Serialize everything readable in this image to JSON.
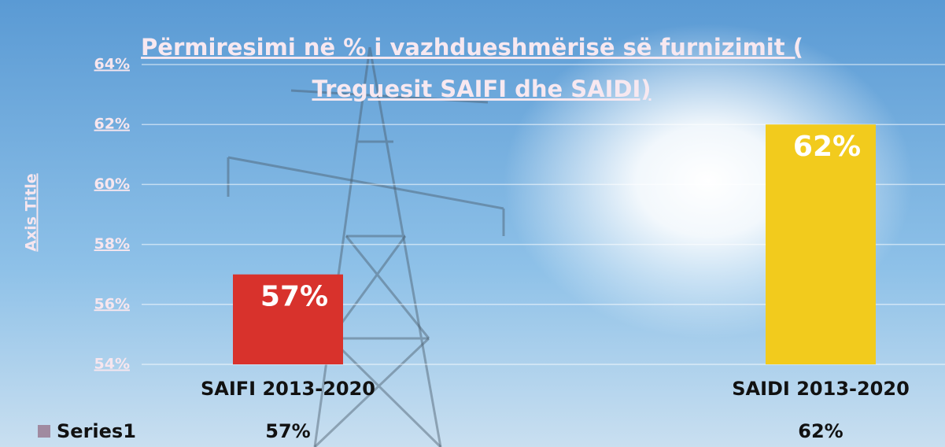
{
  "chart_data": {
    "type": "bar",
    "title_lines": [
      "Përmiresimi në % i vazhdueshmërisë së furnizimit (",
      "Treguesit SAIFI dhe SAIDI)"
    ],
    "y_axis_title": "Axis Title",
    "categories": [
      "SAIFI 2013-2020",
      "SAIDI 2013-2020"
    ],
    "series": [
      {
        "name": "Series1",
        "color": "#a08aa0",
        "values": [
          57,
          62
        ],
        "value_labels": [
          "57%",
          "62%"
        ],
        "colors": [
          "#d8322c",
          "#f2cb1d"
        ]
      }
    ],
    "ylim": [
      54,
      64
    ],
    "yticks": [
      {
        "value": 54,
        "label": "54%"
      },
      {
        "value": 56,
        "label": "56%"
      },
      {
        "value": 58,
        "label": "58%"
      },
      {
        "value": 60,
        "label": "60%"
      },
      {
        "value": 62,
        "label": "62%"
      },
      {
        "value": 64,
        "label": "64%"
      }
    ],
    "grid": true
  }
}
